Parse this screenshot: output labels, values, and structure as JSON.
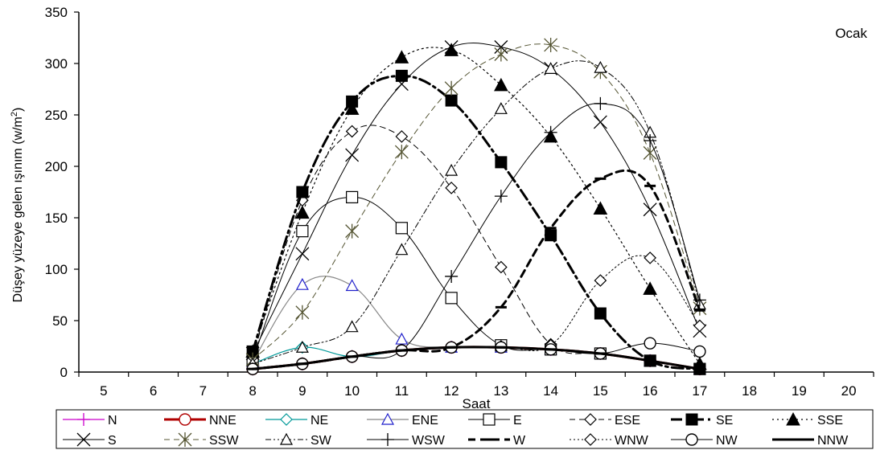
{
  "chart_data": {
    "type": "line",
    "title": "Ocak",
    "xlabel": "Saat",
    "ylabel_main": "Düşey yüzeye gelen  ışınım (w/m",
    "ylabel_sup": "2",
    "ylabel_close": ")",
    "xlim": [
      4.5,
      20.5
    ],
    "ylim": [
      0,
      350
    ],
    "x_ticks": [
      "5",
      "6",
      "7",
      "8",
      "9",
      "10",
      "11",
      "12",
      "13",
      "14",
      "15",
      "16",
      "17",
      "18",
      "19",
      "20"
    ],
    "y_ticks": [
      "0",
      "50",
      "100",
      "150",
      "200",
      "250",
      "300",
      "350"
    ],
    "grid": false,
    "legend_position": "bottom",
    "x": [
      8,
      9,
      10,
      11,
      12,
      13,
      14,
      15,
      16,
      17
    ],
    "series": [
      {
        "name": "N",
        "color": "#cc00cc",
        "width": 1.2,
        "dash": "",
        "marker": "plus",
        "values": [
          3,
          8,
          15,
          21,
          24,
          24,
          22,
          18,
          11,
          3
        ]
      },
      {
        "name": "NNE",
        "color": "#b00000",
        "width": 3,
        "dash": "",
        "marker": "circle",
        "values": [
          3,
          8,
          15,
          21,
          24,
          24,
          22,
          18,
          11,
          3
        ]
      },
      {
        "name": "NE",
        "color": "#009999",
        "width": 1.2,
        "dash": "",
        "marker": "diamond",
        "values": [
          8,
          24,
          15,
          21,
          24,
          24,
          22,
          18,
          11,
          3
        ]
      },
      {
        "name": "ENE",
        "color": "#888888",
        "width": 1.2,
        "dash": "",
        "marker": "triangle-blue",
        "values": [
          10,
          85,
          84,
          32,
          24,
          24,
          22,
          18,
          11,
          3
        ]
      },
      {
        "name": "E",
        "color": "#000000",
        "width": 1,
        "dash": "",
        "marker": "square",
        "values": [
          12,
          137,
          170,
          140,
          72,
          26,
          22,
          18,
          11,
          3
        ]
      },
      {
        "name": "ESE",
        "color": "#000000",
        "width": 1,
        "dash": "7,5",
        "marker": "diamond",
        "values": [
          15,
          167,
          234,
          229,
          179,
          102,
          27,
          18,
          11,
          3
        ]
      },
      {
        "name": "SE",
        "color": "#000000",
        "width": 3,
        "dash": "14,5,3,5",
        "marker": "square-filled",
        "values": [
          20,
          175,
          263,
          288,
          264,
          204,
          133,
          57,
          11,
          3
        ]
      },
      {
        "name": "SSE",
        "color": "#000000",
        "width": 1.2,
        "dash": "2,4",
        "marker": "triangle-filled",
        "values": [
          20,
          155,
          256,
          306,
          313,
          279,
          229,
          159,
          81,
          8
        ]
      },
      {
        "name": "S",
        "color": "#000000",
        "width": 1,
        "dash": "",
        "marker": "x",
        "values": [
          18,
          115,
          211,
          280,
          316,
          316,
          295,
          243,
          158,
          40
        ]
      },
      {
        "name": "SSW",
        "color": "#555533",
        "width": 1,
        "dash": "7,5",
        "marker": "asterisk",
        "values": [
          12,
          58,
          137,
          214,
          276,
          309,
          318,
          292,
          213,
          62
        ]
      },
      {
        "name": "SW",
        "color": "#000000",
        "width": 1,
        "dash": "7,3,2,3,2,3",
        "marker": "triangle",
        "values": [
          8,
          24,
          44,
          119,
          196,
          256,
          295,
          296,
          233,
          66
        ]
      },
      {
        "name": "WSW",
        "color": "#000000",
        "width": 1,
        "dash": "",
        "marker": "plus",
        "values": [
          3,
          8,
          15,
          21,
          93,
          171,
          233,
          261,
          225,
          70
        ]
      },
      {
        "name": "W",
        "color": "#000000",
        "width": 3,
        "dash": "9,6",
        "marker": "dash",
        "values": [
          3,
          8,
          15,
          21,
          24,
          63,
          140,
          188,
          181,
          60
        ]
      },
      {
        "name": "WNW",
        "color": "#000000",
        "width": 1,
        "dash": "2,3",
        "marker": "diamond",
        "values": [
          3,
          8,
          15,
          21,
          24,
          25,
          26,
          89,
          111,
          45
        ]
      },
      {
        "name": "NW",
        "color": "#000000",
        "width": 1,
        "dash": "",
        "marker": "circle",
        "values": [
          3,
          8,
          15,
          21,
          24,
          24,
          22,
          18,
          28,
          20
        ]
      },
      {
        "name": "NNW",
        "color": "#000000",
        "width": 3,
        "dash": "",
        "marker": "dash",
        "values": [
          3,
          8,
          15,
          21,
          24,
          24,
          22,
          18,
          11,
          3
        ]
      }
    ]
  }
}
